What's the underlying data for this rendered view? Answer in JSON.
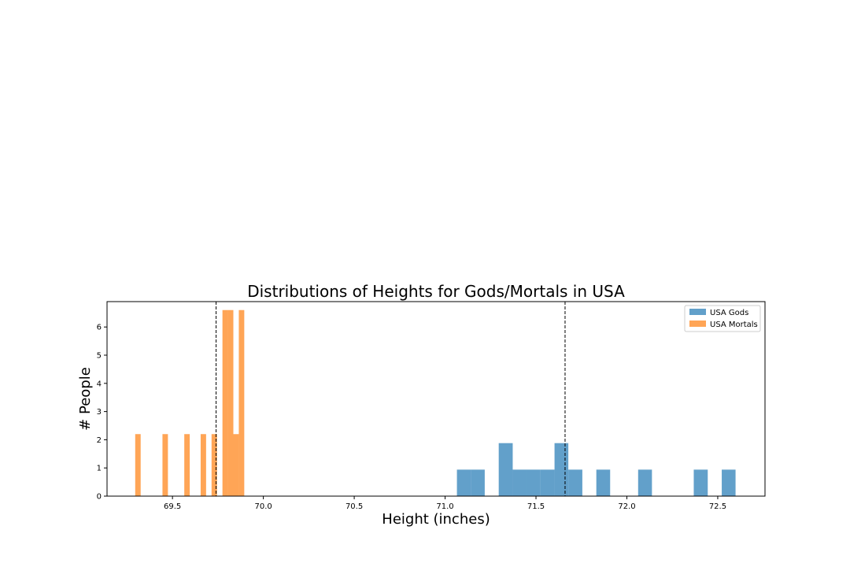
{
  "chart_data": {
    "type": "bar",
    "title": "Distributions of Heights for Gods/Mortals in USA",
    "xlabel": "Height (inches)",
    "ylabel": "# People",
    "xlim": [
      69.14,
      72.76
    ],
    "ylim": [
      0,
      6.9
    ],
    "x_ticks": [
      69.5,
      70.0,
      70.5,
      71.0,
      71.5,
      72.0,
      72.5
    ],
    "x_tick_labels": [
      "69.5",
      "70.0",
      "70.5",
      "71.0",
      "71.5",
      "72.0",
      "72.5"
    ],
    "y_ticks": [
      0,
      1,
      2,
      3,
      4,
      5,
      6
    ],
    "y_tick_labels": [
      "0",
      "1",
      "2",
      "3",
      "4",
      "5",
      "6"
    ],
    "legend_position": "top-right",
    "grid": false,
    "series": [
      {
        "name": "USA Gods",
        "color": "#1f77b4",
        "opacity": 0.7,
        "bins": [
          {
            "x0": 71.065,
            "x1": 71.142,
            "value": 0.94
          },
          {
            "x0": 71.142,
            "x1": 71.218,
            "value": 0.94
          },
          {
            "x0": 71.295,
            "x1": 71.372,
            "value": 1.88
          },
          {
            "x0": 71.372,
            "x1": 71.448,
            "value": 0.94
          },
          {
            "x0": 71.448,
            "x1": 71.525,
            "value": 0.94
          },
          {
            "x0": 71.525,
            "x1": 71.602,
            "value": 0.94
          },
          {
            "x0": 71.602,
            "x1": 71.678,
            "value": 1.88
          },
          {
            "x0": 71.678,
            "x1": 71.755,
            "value": 0.94
          },
          {
            "x0": 71.832,
            "x1": 71.908,
            "value": 0.94
          },
          {
            "x0": 72.062,
            "x1": 72.138,
            "value": 0.94
          },
          {
            "x0": 72.368,
            "x1": 72.445,
            "value": 0.94
          },
          {
            "x0": 72.522,
            "x1": 72.598,
            "value": 0.94
          }
        ]
      },
      {
        "name": "USA Mortals",
        "color": "#ff7f0e",
        "opacity": 0.7,
        "bins": [
          {
            "x0": 69.295,
            "x1": 69.325,
            "value": 2.2
          },
          {
            "x0": 69.445,
            "x1": 69.475,
            "value": 2.2
          },
          {
            "x0": 69.565,
            "x1": 69.595,
            "value": 2.2
          },
          {
            "x0": 69.655,
            "x1": 69.685,
            "value": 2.2
          },
          {
            "x0": 69.715,
            "x1": 69.745,
            "value": 2.2
          },
          {
            "x0": 69.775,
            "x1": 69.805,
            "value": 6.6
          },
          {
            "x0": 69.805,
            "x1": 69.835,
            "value": 6.6
          },
          {
            "x0": 69.835,
            "x1": 69.865,
            "value": 2.2
          },
          {
            "x0": 69.865,
            "x1": 69.895,
            "value": 6.6
          }
        ]
      }
    ],
    "vlines": [
      {
        "x": 69.74,
        "style": "dashed",
        "color": "#000000"
      },
      {
        "x": 71.66,
        "style": "dashed",
        "color": "#000000"
      }
    ]
  }
}
